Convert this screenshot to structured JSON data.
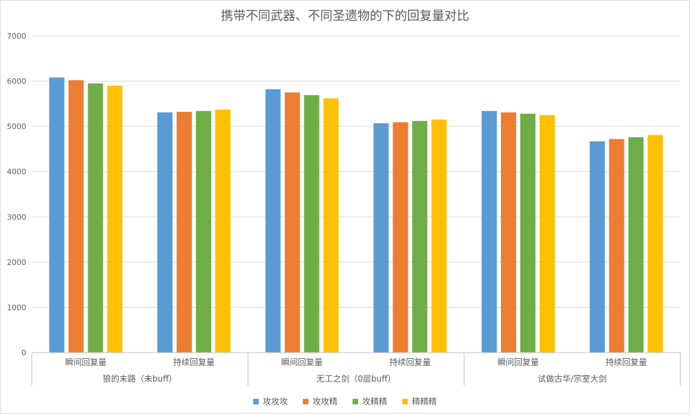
{
  "chart_data": {
    "type": "bar",
    "title": "携带不同武器、不同圣遗物的下的回复量对比",
    "xlabel": "",
    "ylabel": "",
    "ylim": [
      0,
      7000
    ],
    "y_ticks": [
      0,
      1000,
      2000,
      3000,
      4000,
      5000,
      6000,
      7000
    ],
    "grid": true,
    "legend_position": "bottom",
    "groups": [
      {
        "label": "狼的末路（未buff）",
        "categories": [
          "瞬间回复量",
          "持续回复量"
        ]
      },
      {
        "label": "无工之剑（0层buff）",
        "categories": [
          "瞬间回复量",
          "持续回复量"
        ]
      },
      {
        "label": "试做古华/宗室大剑",
        "categories": [
          "瞬间回复量",
          "持续回复量"
        ]
      }
    ],
    "series": [
      {
        "name": "攻攻攻",
        "color": "#5b9bd5",
        "values": [
          6080,
          5310,
          5820,
          5070,
          5340,
          4670
        ]
      },
      {
        "name": "攻攻精",
        "color": "#ed7d31",
        "values": [
          6020,
          5320,
          5750,
          5090,
          5310,
          4720
        ]
      },
      {
        "name": "攻精精",
        "color": "#70ad47",
        "values": [
          5950,
          5340,
          5690,
          5120,
          5280,
          4760
        ]
      },
      {
        "name": "精精精",
        "color": "#ffc000",
        "values": [
          5900,
          5370,
          5620,
          5150,
          5250,
          4810
        ]
      }
    ]
  }
}
